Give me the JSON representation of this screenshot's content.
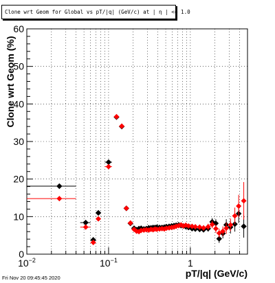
{
  "chart_data": {
    "type": "scatter",
    "title": "Clone wrt Geom for Global vs pT/|q| (GeV/c) at |  η | <= 1.0",
    "xlabel": "pT/|q| (GeV/c)",
    "ylabel": "Clone wrt Geom (%)",
    "xscale": "log",
    "xlim": [
      0.01,
      5.0
    ],
    "ylim": [
      0,
      60
    ],
    "grid": true,
    "x_tick_labels": [
      {
        "value": 0.01,
        "label": "10",
        "sup": "−2"
      },
      {
        "value": 0.1,
        "label": "10",
        "sup": "−1"
      },
      {
        "value": 1,
        "label": "1",
        "sup": ""
      }
    ],
    "y_ticks": [
      0,
      10,
      20,
      30,
      40,
      50,
      60
    ],
    "series": [
      {
        "color": "#000000",
        "marker": "diamond",
        "points": [
          {
            "x": 0.025,
            "y": 18.1,
            "xlo": 0.01,
            "xhi": 0.04,
            "err": 0.0
          },
          {
            "x": 0.0525,
            "y": 8.4,
            "xlo": 0.045,
            "xhi": 0.06,
            "err": 0.3
          },
          {
            "x": 0.065,
            "y": 3.8,
            "xlo": 0.06,
            "xhi": 0.07,
            "err": 0.3
          },
          {
            "x": 0.075,
            "y": 11.0,
            "xlo": 0.07,
            "xhi": 0.08,
            "err": 0.4
          },
          {
            "x": 0.1,
            "y": 24.5,
            "xlo": 0.09,
            "xhi": 0.11,
            "err": 0.4
          },
          {
            "x": 0.125,
            "y": 36.5,
            "xlo": 0.12,
            "xhi": 0.13,
            "err": 0.4
          },
          {
            "x": 0.145,
            "y": 34.0,
            "xlo": 0.14,
            "xhi": 0.15,
            "err": 0.4
          },
          {
            "x": 0.165,
            "y": 12.2,
            "xlo": 0.16,
            "xhi": 0.17,
            "err": 0.4
          },
          {
            "x": 0.185,
            "y": 8.2,
            "xlo": 0.18,
            "xhi": 0.19,
            "err": 0.3
          },
          {
            "x": 0.205,
            "y": 6.9,
            "err": 0.3
          },
          {
            "x": 0.22,
            "y": 6.5,
            "err": 0.3
          },
          {
            "x": 0.235,
            "y": 6.8,
            "err": 0.3
          },
          {
            "x": 0.25,
            "y": 6.9,
            "err": 0.3
          },
          {
            "x": 0.27,
            "y": 6.7,
            "err": 0.3
          },
          {
            "x": 0.29,
            "y": 6.8,
            "err": 0.3
          },
          {
            "x": 0.31,
            "y": 7.0,
            "err": 0.3
          },
          {
            "x": 0.33,
            "y": 7.0,
            "err": 0.3
          },
          {
            "x": 0.35,
            "y": 7.1,
            "err": 0.3
          },
          {
            "x": 0.37,
            "y": 7.1,
            "err": 0.3
          },
          {
            "x": 0.39,
            "y": 7.2,
            "err": 0.3
          },
          {
            "x": 0.42,
            "y": 7.1,
            "err": 0.3
          },
          {
            "x": 0.45,
            "y": 7.1,
            "err": 0.3
          },
          {
            "x": 0.48,
            "y": 7.2,
            "err": 0.3
          },
          {
            "x": 0.51,
            "y": 7.3,
            "err": 0.3
          },
          {
            "x": 0.55,
            "y": 7.4,
            "err": 0.3
          },
          {
            "x": 0.59,
            "y": 7.5,
            "err": 0.3
          },
          {
            "x": 0.63,
            "y": 7.6,
            "err": 0.3
          },
          {
            "x": 0.67,
            "y": 7.7,
            "err": 0.3
          },
          {
            "x": 0.72,
            "y": 7.8,
            "err": 0.3
          },
          {
            "x": 0.77,
            "y": 7.6,
            "err": 0.3
          },
          {
            "x": 0.82,
            "y": 7.5,
            "err": 0.4
          },
          {
            "x": 0.88,
            "y": 7.3,
            "err": 0.4
          },
          {
            "x": 0.95,
            "y": 7.1,
            "err": 0.4
          },
          {
            "x": 1.05,
            "y": 6.8,
            "err": 0.5
          },
          {
            "x": 1.15,
            "y": 6.7,
            "err": 0.5
          },
          {
            "x": 1.3,
            "y": 6.6,
            "err": 0.6
          },
          {
            "x": 1.45,
            "y": 6.5,
            "err": 0.7
          },
          {
            "x": 1.65,
            "y": 6.8,
            "err": 0.8
          },
          {
            "x": 1.85,
            "y": 8.6,
            "err": 1.0
          },
          {
            "x": 2.05,
            "y": 8.2,
            "err": 1.1
          },
          {
            "x": 2.25,
            "y": 4.1,
            "err": 1.1
          },
          {
            "x": 2.5,
            "y": 5.5,
            "err": 1.3
          },
          {
            "x": 2.75,
            "y": 7.8,
            "err": 1.5
          },
          {
            "x": 3.1,
            "y": 7.2,
            "err": 1.7
          },
          {
            "x": 3.5,
            "y": 8.0,
            "err": 2.0
          },
          {
            "x": 3.9,
            "y": 10.8,
            "err": 2.5
          },
          {
            "x": 4.5,
            "y": 7.4,
            "err": 3.0
          }
        ]
      },
      {
        "color": "#ff0000",
        "marker": "circle",
        "points": [
          {
            "x": 0.025,
            "y": 14.8,
            "xlo": 0.01,
            "xhi": 0.04,
            "err": 0.0
          },
          {
            "x": 0.0525,
            "y": 7.2,
            "xlo": 0.045,
            "xhi": 0.06,
            "err": 0.3
          },
          {
            "x": 0.065,
            "y": 3.1,
            "xlo": 0.06,
            "xhi": 0.07,
            "err": 0.3
          },
          {
            "x": 0.075,
            "y": 9.4,
            "xlo": 0.07,
            "xhi": 0.08,
            "err": 0.4
          },
          {
            "x": 0.1,
            "y": 23.3,
            "xlo": 0.09,
            "xhi": 0.11,
            "err": 0.4
          },
          {
            "x": 0.125,
            "y": 36.6,
            "xlo": 0.12,
            "xhi": 0.13,
            "err": 0.4
          },
          {
            "x": 0.145,
            "y": 34.1,
            "xlo": 0.14,
            "xhi": 0.15,
            "err": 0.4
          },
          {
            "x": 0.165,
            "y": 12.2,
            "xlo": 0.16,
            "xhi": 0.17,
            "err": 0.4
          },
          {
            "x": 0.185,
            "y": 8.3,
            "xlo": 0.18,
            "xhi": 0.19,
            "err": 0.3
          },
          {
            "x": 0.205,
            "y": 6.6,
            "err": 0.3
          },
          {
            "x": 0.22,
            "y": 6.1,
            "err": 0.3
          },
          {
            "x": 0.235,
            "y": 6.0,
            "err": 0.3
          },
          {
            "x": 0.25,
            "y": 6.3,
            "err": 0.3
          },
          {
            "x": 0.27,
            "y": 6.4,
            "err": 0.3
          },
          {
            "x": 0.29,
            "y": 6.5,
            "err": 0.3
          },
          {
            "x": 0.31,
            "y": 6.4,
            "err": 0.3
          },
          {
            "x": 0.33,
            "y": 6.6,
            "err": 0.3
          },
          {
            "x": 0.35,
            "y": 6.5,
            "err": 0.3
          },
          {
            "x": 0.37,
            "y": 6.7,
            "err": 0.3
          },
          {
            "x": 0.39,
            "y": 6.6,
            "err": 0.3
          },
          {
            "x": 0.42,
            "y": 6.7,
            "err": 0.3
          },
          {
            "x": 0.45,
            "y": 6.8,
            "err": 0.3
          },
          {
            "x": 0.48,
            "y": 6.7,
            "err": 0.3
          },
          {
            "x": 0.51,
            "y": 6.9,
            "err": 0.3
          },
          {
            "x": 0.55,
            "y": 7.0,
            "err": 0.3
          },
          {
            "x": 0.59,
            "y": 7.1,
            "err": 0.3
          },
          {
            "x": 0.63,
            "y": 7.2,
            "err": 0.3
          },
          {
            "x": 0.67,
            "y": 7.4,
            "err": 0.3
          },
          {
            "x": 0.72,
            "y": 7.6,
            "err": 0.3
          },
          {
            "x": 0.77,
            "y": 7.8,
            "err": 0.3
          },
          {
            "x": 0.82,
            "y": 7.5,
            "err": 0.4
          },
          {
            "x": 0.88,
            "y": 7.7,
            "err": 0.4
          },
          {
            "x": 0.95,
            "y": 7.5,
            "err": 0.4
          },
          {
            "x": 1.05,
            "y": 7.4,
            "err": 0.5
          },
          {
            "x": 1.15,
            "y": 7.3,
            "err": 0.5
          },
          {
            "x": 1.3,
            "y": 7.2,
            "err": 0.6
          },
          {
            "x": 1.45,
            "y": 7.0,
            "err": 0.7
          },
          {
            "x": 1.65,
            "y": 7.3,
            "err": 0.8
          },
          {
            "x": 1.85,
            "y": 7.9,
            "err": 1.0
          },
          {
            "x": 2.05,
            "y": 6.8,
            "err": 1.1
          },
          {
            "x": 2.25,
            "y": 5.6,
            "err": 1.2
          },
          {
            "x": 2.5,
            "y": 6.1,
            "err": 1.3
          },
          {
            "x": 2.75,
            "y": 6.9,
            "err": 1.5
          },
          {
            "x": 3.1,
            "y": 7.8,
            "err": 1.7
          },
          {
            "x": 3.5,
            "y": 10.2,
            "err": 2.2
          },
          {
            "x": 3.9,
            "y": 12.8,
            "err": 3.0
          },
          {
            "x": 4.5,
            "y": 14.2,
            "err": 5.0
          }
        ]
      }
    ]
  },
  "footer": {
    "timestamp": "Fri Nov 20 09:45:45 2020"
  }
}
